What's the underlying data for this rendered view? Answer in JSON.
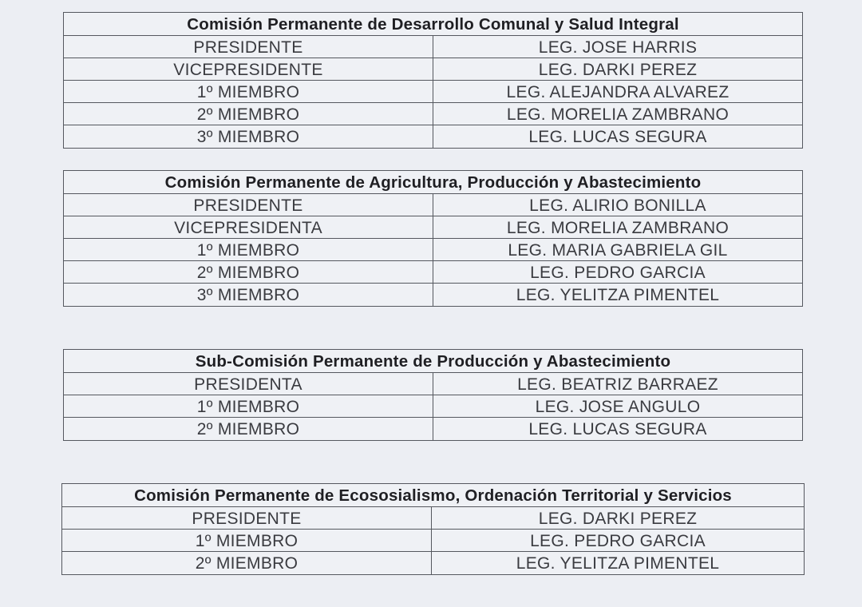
{
  "committees": [
    {
      "title": "Comisión Permanente de Desarrollo Comunal y Salud Integral",
      "members": [
        {
          "role": "PRESIDENTE",
          "name": "LEG. JOSE HARRIS"
        },
        {
          "role": "VICEPRESIDENTE",
          "name": "LEG. DARKI PEREZ"
        },
        {
          "role": "1º MIEMBRO",
          "name": "LEG. ALEJANDRA ALVAREZ"
        },
        {
          "role": "2º MIEMBRO",
          "name": "LEG. MORELIA ZAMBRANO"
        },
        {
          "role": "3º MIEMBRO",
          "name": "LEG. LUCAS SEGURA"
        }
      ]
    },
    {
      "title": "Comisión Permanente de Agricultura, Producción y Abastecimiento",
      "members": [
        {
          "role": "PRESIDENTE",
          "name": "LEG. ALIRIO BONILLA"
        },
        {
          "role": "VICEPRESIDENTA",
          "name": "LEG. MORELIA ZAMBRANO"
        },
        {
          "role": "1º MIEMBRO",
          "name": "LEG. MARIA GABRIELA GIL"
        },
        {
          "role": "2º MIEMBRO",
          "name": "LEG. PEDRO GARCIA"
        },
        {
          "role": "3º MIEMBRO",
          "name": "LEG. YELITZA PIMENTEL"
        }
      ]
    },
    {
      "title": "Sub-Comisión Permanente de Producción y Abastecimiento",
      "members": [
        {
          "role": "PRESIDENTA",
          "name": "LEG. BEATRIZ BARRAEZ"
        },
        {
          "role": "1º MIEMBRO",
          "name": "LEG. JOSE ANGULO"
        },
        {
          "role": "2º MIEMBRO",
          "name": "LEG. LUCAS SEGURA"
        }
      ]
    },
    {
      "title": "Comisión Permanente de Ecososialismo, Ordenación Territorial y Servicios",
      "members": [
        {
          "role": "PRESIDENTE",
          "name": "LEG. DARKI PEREZ"
        },
        {
          "role": "1º MIEMBRO",
          "name": "LEG. PEDRO GARCIA"
        },
        {
          "role": "2º MIEMBRO",
          "name": "LEG. YELITZA PIMENTEL"
        }
      ]
    }
  ]
}
